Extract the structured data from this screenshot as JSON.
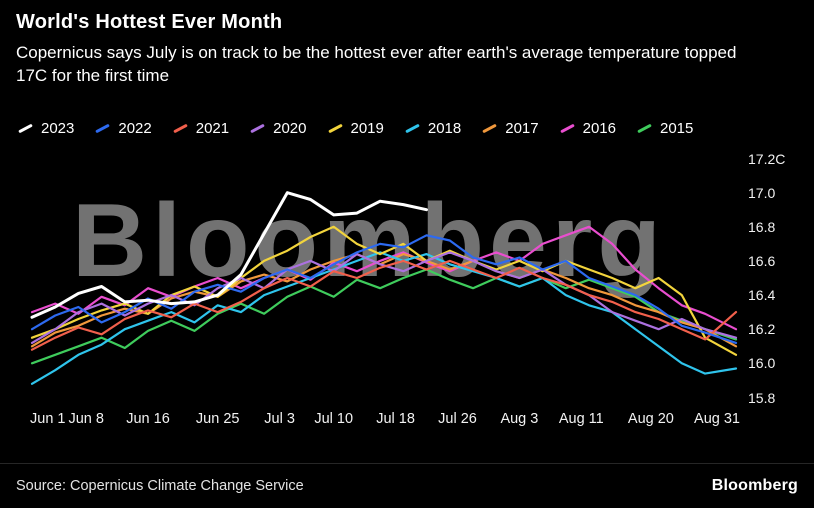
{
  "watermark": "Bloomberg",
  "footer": {
    "source": "Source: Copernicus Climate Change Service",
    "brand": "Bloomberg"
  },
  "chart_data": {
    "type": "line",
    "title": "World's Hottest Ever Month",
    "subtitle": "Copernicus says July is on track to be the hottest ever after earth's average temperature topped 17C for the first time",
    "xlabel": "",
    "ylabel": "",
    "unit": "C",
    "ylim": [
      15.75,
      17.25
    ],
    "grid": false,
    "legend_position": "top",
    "x_days": [
      0,
      3,
      6,
      9,
      12,
      15,
      18,
      21,
      24,
      27,
      30,
      33,
      36,
      39,
      42,
      45,
      48,
      51,
      54,
      57,
      60,
      63,
      66,
      69,
      72,
      75,
      78,
      81,
      84,
      87,
      91
    ],
    "x_ticks": [
      {
        "day": 0,
        "label": "Jun 1"
      },
      {
        "day": 7,
        "label": "Jun 8"
      },
      {
        "day": 15,
        "label": "Jun 16"
      },
      {
        "day": 24,
        "label": "Jun 25"
      },
      {
        "day": 32,
        "label": "Jul 3"
      },
      {
        "day": 39,
        "label": "Jul 10"
      },
      {
        "day": 47,
        "label": "Jul 18"
      },
      {
        "day": 55,
        "label": "Jul 26"
      },
      {
        "day": 63,
        "label": "Aug 3"
      },
      {
        "day": 71,
        "label": "Aug 11"
      },
      {
        "day": 80,
        "label": "Aug 20"
      },
      {
        "day": 91,
        "label": "Aug 31"
      }
    ],
    "y_ticks": [
      {
        "value": 17.2,
        "label": "17.2C"
      },
      {
        "value": 17.0,
        "label": "17.0"
      },
      {
        "value": 16.8,
        "label": "16.8"
      },
      {
        "value": 16.6,
        "label": "16.6"
      },
      {
        "value": 16.4,
        "label": "16.4"
      },
      {
        "value": 16.2,
        "label": "16.2"
      },
      {
        "value": 16.0,
        "label": "16.0"
      },
      {
        "value": 15.8,
        "label": "15.8"
      }
    ],
    "series": [
      {
        "name": "2023",
        "color": "#ffffff",
        "values": [
          16.27,
          16.33,
          16.41,
          16.45,
          16.36,
          16.37,
          16.35,
          16.36,
          16.4,
          16.52,
          16.76,
          17.0,
          16.96,
          16.87,
          16.88,
          16.95,
          16.93,
          16.9,
          null,
          null,
          null,
          null,
          null,
          null,
          null,
          null,
          null,
          null,
          null,
          null,
          null
        ]
      },
      {
        "name": "2022",
        "color": "#2d6af0",
        "values": [
          16.2,
          16.28,
          16.33,
          16.24,
          16.3,
          16.38,
          16.32,
          16.42,
          16.46,
          16.42,
          16.5,
          16.55,
          16.5,
          16.58,
          16.65,
          16.7,
          16.68,
          16.75,
          16.72,
          16.62,
          16.58,
          16.62,
          16.55,
          16.6,
          16.5,
          16.45,
          16.4,
          16.32,
          16.22,
          16.18,
          16.12
        ]
      },
      {
        "name": "2021",
        "color": "#f2604c",
        "values": [
          16.08,
          16.15,
          16.21,
          16.17,
          16.26,
          16.31,
          16.27,
          16.35,
          16.3,
          16.36,
          16.44,
          16.5,
          16.45,
          16.54,
          16.5,
          16.56,
          16.6,
          16.55,
          16.6,
          16.55,
          16.5,
          16.56,
          16.5,
          16.46,
          16.4,
          16.36,
          16.3,
          16.26,
          16.2,
          16.14,
          16.3
        ]
      },
      {
        "name": "2020",
        "color": "#ac71e0",
        "values": [
          16.12,
          16.2,
          16.3,
          16.35,
          16.28,
          16.35,
          16.4,
          16.34,
          16.44,
          16.5,
          16.44,
          16.55,
          16.6,
          16.54,
          16.64,
          16.58,
          16.54,
          16.6,
          16.65,
          16.6,
          16.54,
          16.5,
          16.55,
          16.46,
          16.4,
          16.3,
          16.25,
          16.2,
          16.26,
          16.2,
          16.15
        ]
      },
      {
        "name": "2019",
        "color": "#f2d43c",
        "values": [
          16.15,
          16.2,
          16.26,
          16.31,
          16.35,
          16.29,
          16.4,
          16.45,
          16.39,
          16.5,
          16.6,
          16.66,
          16.74,
          16.8,
          16.7,
          16.64,
          16.7,
          16.6,
          16.66,
          16.6,
          16.55,
          16.6,
          16.54,
          16.6,
          16.55,
          16.5,
          16.44,
          16.5,
          16.4,
          16.15,
          16.05
        ]
      },
      {
        "name": "2018",
        "color": "#2fc4ec",
        "values": [
          15.88,
          15.96,
          16.05,
          16.11,
          16.2,
          16.25,
          16.3,
          16.24,
          16.34,
          16.3,
          16.4,
          16.45,
          16.5,
          16.55,
          16.6,
          16.65,
          16.6,
          16.64,
          16.58,
          16.54,
          16.5,
          16.45,
          16.5,
          16.4,
          16.34,
          16.3,
          16.2,
          16.1,
          16.0,
          15.94,
          15.97
        ]
      },
      {
        "name": "2017",
        "color": "#f0983c",
        "values": [
          16.1,
          16.18,
          16.22,
          16.28,
          16.32,
          16.29,
          16.38,
          16.42,
          16.39,
          16.48,
          16.52,
          16.48,
          16.55,
          16.6,
          16.64,
          16.58,
          16.64,
          16.6,
          16.55,
          16.6,
          16.54,
          16.5,
          16.55,
          16.5,
          16.44,
          16.4,
          16.34,
          16.3,
          16.24,
          16.2,
          16.1
        ]
      },
      {
        "name": "2016",
        "color": "#e94ecf",
        "values": [
          16.3,
          16.35,
          16.29,
          16.39,
          16.34,
          16.44,
          16.39,
          16.45,
          16.5,
          16.44,
          16.5,
          16.55,
          16.49,
          16.59,
          16.54,
          16.6,
          16.65,
          16.59,
          16.54,
          16.6,
          16.65,
          16.6,
          16.7,
          16.75,
          16.8,
          16.7,
          16.55,
          16.44,
          16.34,
          16.29,
          16.2
        ]
      },
      {
        "name": "2015",
        "color": "#3fcc5c",
        "values": [
          16.0,
          16.05,
          16.1,
          16.15,
          16.09,
          16.19,
          16.25,
          16.19,
          16.29,
          16.35,
          16.29,
          16.39,
          16.45,
          16.39,
          16.49,
          16.44,
          16.5,
          16.55,
          16.49,
          16.44,
          16.5,
          16.45,
          16.5,
          16.44,
          16.49,
          16.44,
          16.39,
          16.3,
          16.25,
          16.2,
          16.14
        ]
      }
    ]
  }
}
